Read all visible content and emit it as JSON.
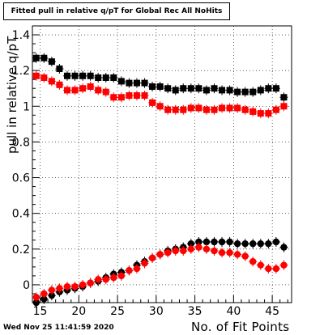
{
  "chart_data": {
    "type": "scatter",
    "title": "Fitted pull in relative q/pT for Global Rec All NoHits",
    "xlabel": "No. of Fit Points",
    "ylabel": "pull in relative q/pT",
    "xlim": [
      14,
      47.5
    ],
    "ylim": [
      -0.1,
      1.45
    ],
    "grid": true,
    "x_ticks": [
      15,
      20,
      25,
      30,
      35,
      40,
      45
    ],
    "y_ticks": [
      0,
      0.2,
      0.4,
      0.6,
      0.8,
      1,
      1.2,
      1.4
    ],
    "y_tick_labels": [
      "0",
      "0.2",
      "0.4",
      "0.6",
      "0.8",
      "1",
      "1.2",
      "1.4"
    ],
    "series": [
      {
        "marker": "square",
        "color": "#000000",
        "x": [
          14.5,
          15.5,
          16.5,
          17.5,
          18.5,
          19.5,
          20.5,
          21.5,
          22.5,
          23.5,
          24.5,
          25.5,
          26.5,
          27.5,
          28.5,
          29.5,
          30.5,
          31.5,
          32.5,
          33.5,
          34.5,
          35.5,
          36.5,
          37.5,
          38.5,
          39.5,
          40.5,
          41.5,
          42.5,
          43.5,
          44.5,
          45.5,
          46.5
        ],
        "y": [
          1.27,
          1.27,
          1.25,
          1.21,
          1.17,
          1.17,
          1.17,
          1.17,
          1.16,
          1.16,
          1.16,
          1.14,
          1.13,
          1.13,
          1.13,
          1.11,
          1.11,
          1.1,
          1.09,
          1.1,
          1.1,
          1.1,
          1.09,
          1.1,
          1.09,
          1.09,
          1.08,
          1.08,
          1.08,
          1.09,
          1.1,
          1.1,
          1.05
        ]
      },
      {
        "marker": "square",
        "color": "#ff0000",
        "x": [
          14.5,
          15.5,
          16.5,
          17.5,
          18.5,
          19.5,
          20.5,
          21.5,
          22.5,
          23.5,
          24.5,
          25.5,
          26.5,
          27.5,
          28.5,
          29.5,
          30.5,
          31.5,
          32.5,
          33.5,
          34.5,
          35.5,
          36.5,
          37.5,
          38.5,
          39.5,
          40.5,
          41.5,
          42.5,
          43.5,
          44.5,
          45.5,
          46.5
        ],
        "y": [
          1.17,
          1.16,
          1.14,
          1.12,
          1.09,
          1.09,
          1.1,
          1.11,
          1.09,
          1.08,
          1.05,
          1.05,
          1.06,
          1.06,
          1.06,
          1.02,
          1.0,
          0.98,
          0.98,
          0.98,
          0.99,
          0.99,
          0.98,
          0.98,
          0.99,
          0.99,
          0.99,
          0.98,
          0.97,
          0.96,
          0.96,
          0.98,
          1.0
        ]
      },
      {
        "marker": "circle",
        "color": "#000000",
        "x": [
          14.5,
          15.5,
          16.5,
          17.5,
          18.5,
          19.5,
          20.5,
          21.5,
          22.5,
          23.5,
          24.5,
          25.5,
          26.5,
          27.5,
          28.5,
          29.5,
          30.5,
          31.5,
          32.5,
          33.5,
          34.5,
          35.5,
          36.5,
          37.5,
          38.5,
          39.5,
          40.5,
          41.5,
          42.5,
          43.5,
          44.5,
          45.5,
          46.5
        ],
        "y": [
          -0.1,
          -0.08,
          -0.06,
          -0.04,
          -0.03,
          -0.02,
          -0.01,
          0.01,
          0.02,
          0.04,
          0.06,
          0.07,
          0.08,
          0.11,
          0.13,
          0.15,
          0.17,
          0.19,
          0.2,
          0.21,
          0.23,
          0.24,
          0.24,
          0.24,
          0.24,
          0.24,
          0.23,
          0.23,
          0.23,
          0.23,
          0.23,
          0.24,
          0.21
        ]
      },
      {
        "marker": "circle",
        "color": "#ff0000",
        "x": [
          14.5,
          15.5,
          16.5,
          17.5,
          18.5,
          19.5,
          20.5,
          21.5,
          22.5,
          23.5,
          24.5,
          25.5,
          26.5,
          27.5,
          28.5,
          29.5,
          30.5,
          31.5,
          32.5,
          33.5,
          34.5,
          35.5,
          36.5,
          37.5,
          38.5,
          39.5,
          40.5,
          41.5,
          42.5,
          43.5,
          44.5,
          45.5,
          46.5
        ],
        "y": [
          -0.07,
          -0.05,
          -0.03,
          -0.02,
          -0.01,
          -0.01,
          0.0,
          0.01,
          0.03,
          0.03,
          0.04,
          0.05,
          0.08,
          0.09,
          0.12,
          0.15,
          0.17,
          0.18,
          0.19,
          0.19,
          0.2,
          0.21,
          0.2,
          0.19,
          0.18,
          0.18,
          0.17,
          0.16,
          0.13,
          0.11,
          0.09,
          0.09,
          0.11
        ]
      }
    ]
  },
  "footer": {
    "timestamp": "Wed Nov 25 11:41:59 2020"
  }
}
